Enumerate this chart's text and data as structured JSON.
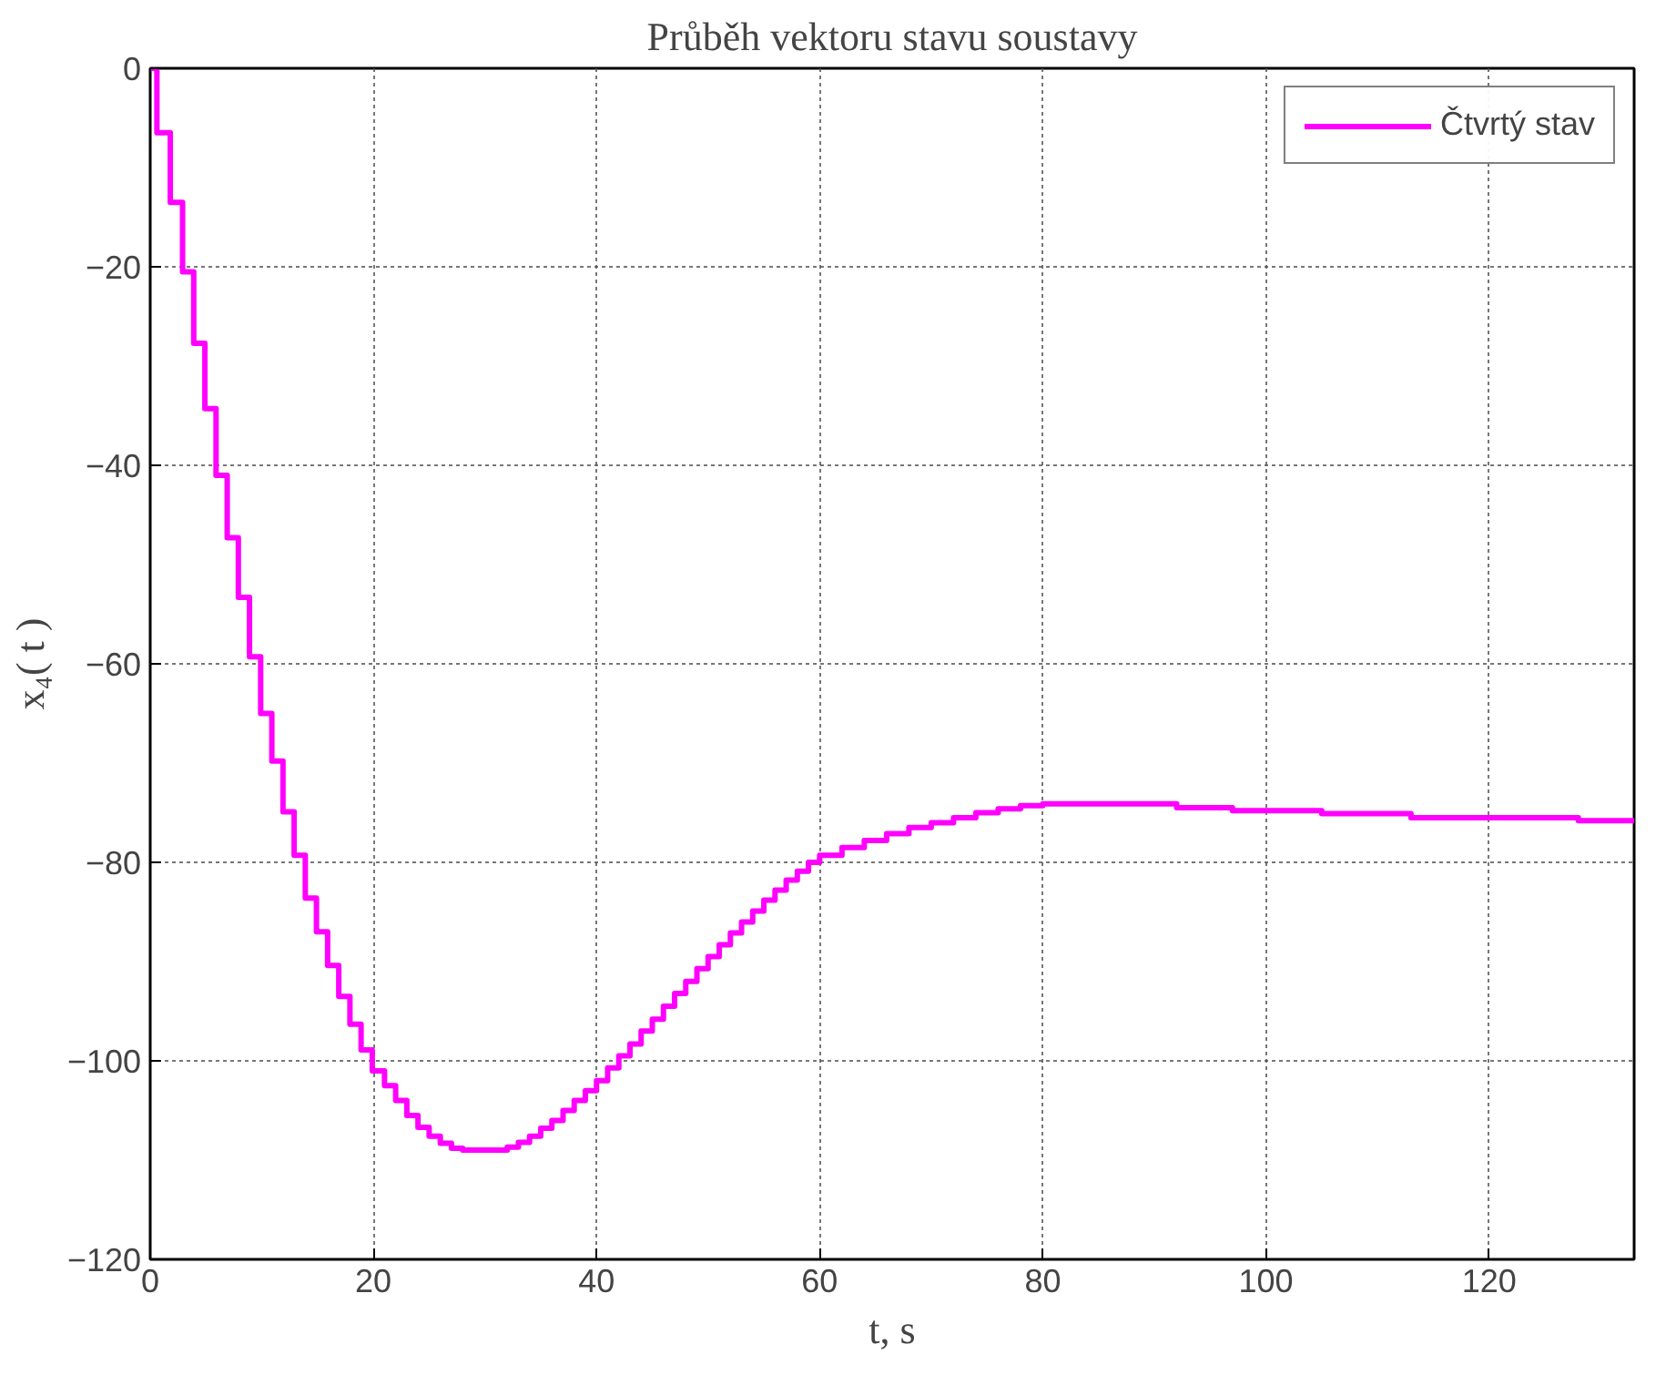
{
  "chart_data": {
    "type": "step",
    "title": "Průběh vektoru stavu soustavy",
    "xlabel": "t, s",
    "ylabel": "x₄( t )",
    "xlim": [
      0,
      133
    ],
    "ylim": [
      -120,
      0
    ],
    "xticks": [
      0,
      20,
      40,
      60,
      80,
      100,
      120
    ],
    "yticks": [
      -120,
      -100,
      -80,
      -60,
      -40,
      -20,
      0
    ],
    "grid": true,
    "legend": "top right",
    "line_style": "solid",
    "series": [
      {
        "name": "Čtvrtý stav",
        "color": "#ff00ff",
        "x": [
          0,
          0.6,
          1.8,
          2.9,
          3.9,
          4.9,
          5.9,
          6.9,
          7.9,
          8.9,
          9.9,
          10.9,
          11.9,
          12.9,
          13.9,
          14.9,
          15.9,
          16.9,
          17.9,
          18.9,
          19.9,
          21,
          22,
          23,
          24,
          25,
          26,
          27,
          28,
          32,
          33,
          34,
          35,
          36,
          37,
          38,
          39,
          40,
          41,
          42,
          43,
          44,
          45,
          46,
          47,
          48,
          49,
          50,
          51,
          52,
          53,
          54,
          55,
          56,
          57,
          58,
          59,
          60,
          62,
          64,
          66,
          68,
          70,
          72,
          74,
          76,
          78,
          80,
          92,
          97,
          105,
          113,
          128,
          133
        ],
        "values": [
          0,
          -6.5,
          -13.5,
          -20.5,
          -27.7,
          -34.3,
          -41,
          -47.3,
          -53.3,
          -59.3,
          -65,
          -69.8,
          -74.9,
          -79.3,
          -83.6,
          -87,
          -90.4,
          -93.5,
          -96.3,
          -98.9,
          -101,
          -102.5,
          -104,
          -105.5,
          -106.7,
          -107.6,
          -108.3,
          -108.8,
          -109,
          -108.7,
          -108.2,
          -107.6,
          -106.8,
          -106,
          -105,
          -104,
          -103,
          -102,
          -100.7,
          -99.5,
          -98.3,
          -97,
          -95.8,
          -94.5,
          -93.2,
          -92,
          -90.7,
          -89.5,
          -88.3,
          -87.1,
          -86,
          -84.9,
          -83.8,
          -82.8,
          -81.8,
          -80.9,
          -80,
          -79.3,
          -78.5,
          -77.8,
          -77.1,
          -76.5,
          -76,
          -75.5,
          -75,
          -74.6,
          -74.3,
          -74.1,
          -74.5,
          -74.8,
          -75.1,
          -75.5,
          -75.8,
          -75.8
        ]
      }
    ]
  }
}
